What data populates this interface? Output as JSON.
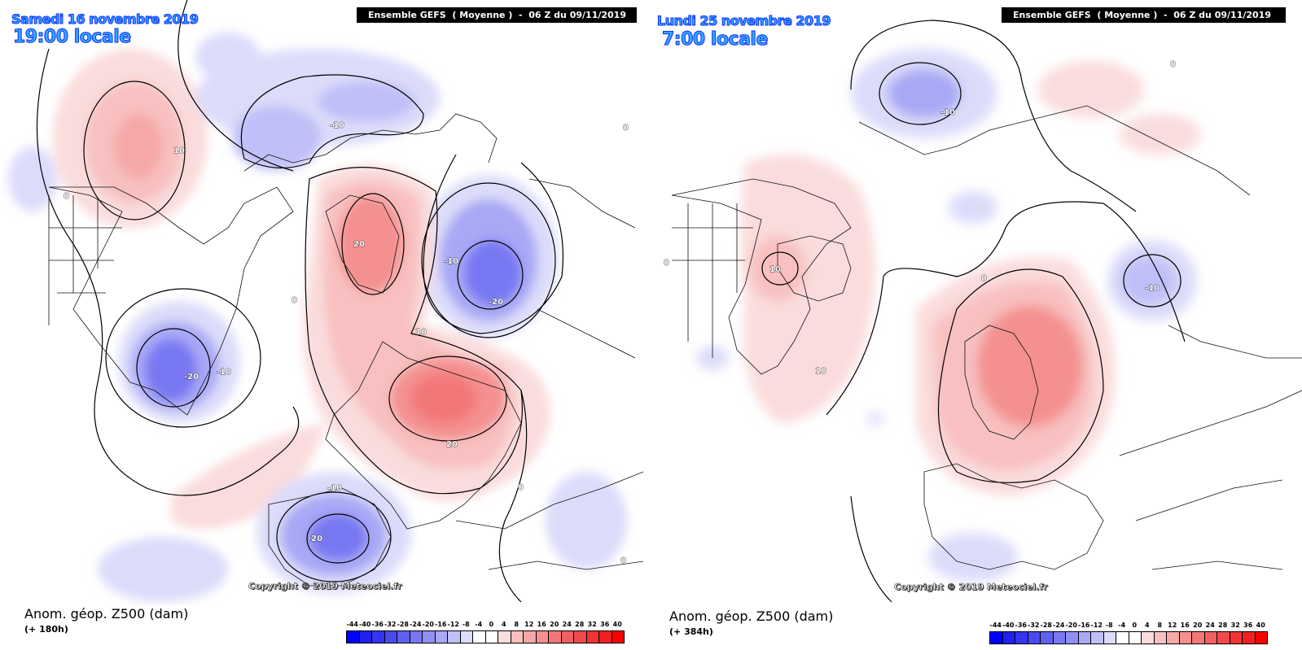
{
  "source": "Meteociel",
  "panels": [
    {
      "date_line": "Samedi 16 novembre 2019",
      "time_line": "19:00 locale",
      "model_banner": "Ensemble GEFS  ( Moyenne )  -  06 Z du 09/11/2019",
      "variable_label": "Anom. géop. Z500 (dam)",
      "lead_time": "(+ 180h)",
      "copyright": "Copyright © 2019 Meteociel.fr",
      "contour_labels": [
        "10",
        "0",
        "-10",
        "20",
        "-10",
        "-20",
        "-20",
        "-10",
        "0",
        "10",
        "20",
        "-10",
        "-20",
        "0",
        "0",
        "0"
      ]
    },
    {
      "date_line": "Lundi 25 novembre 2019",
      "time_line": "7:00 locale",
      "model_banner": "Ensemble GEFS  ( Moyenne )  -  06 Z du 09/11/2019",
      "variable_label": "Anom. géop. Z500 (dam)",
      "lead_time": "(+ 384h)",
      "copyright": "Copyright © 2019 Meteociel.fr",
      "contour_labels": [
        "-10",
        "0",
        "10",
        "0",
        "10",
        "-10",
        "0"
      ]
    }
  ],
  "colorbar": {
    "ticks": [
      "-44",
      "-40",
      "-36",
      "-32",
      "-28",
      "-24",
      "-20",
      "-16",
      "-12",
      "-8",
      "-4",
      "0",
      "4",
      "8",
      "12",
      "16",
      "20",
      "24",
      "28",
      "32",
      "36",
      "40"
    ],
    "colors": [
      "#0000ff",
      "#2020f0",
      "#3535f0",
      "#4a4af0",
      "#6060f0",
      "#7878f2",
      "#9090f4",
      "#a8a8f6",
      "#c0c0f8",
      "#dcdcfa",
      "#ffffff",
      "#ffffff",
      "#fadcdc",
      "#f8c0c0",
      "#f6a8a8",
      "#f49090",
      "#f27878",
      "#f06060",
      "#f04a4a",
      "#f03535",
      "#f02020",
      "#ff0000"
    ]
  }
}
